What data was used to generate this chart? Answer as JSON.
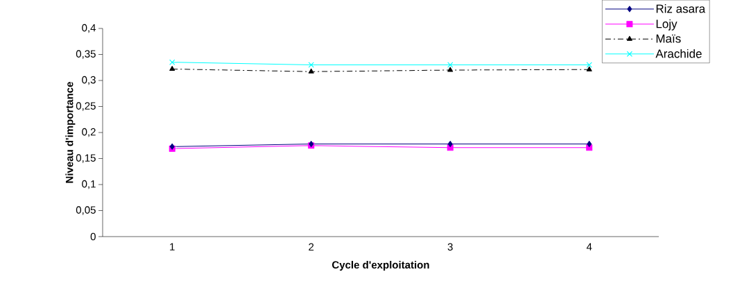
{
  "chart_data": {
    "type": "line",
    "xlabel": "Cycle d'exploitation",
    "ylabel": "Niveau d'importance",
    "categories": [
      "1",
      "2",
      "3",
      "4"
    ],
    "series": [
      {
        "name": "Riz asara",
        "color": "#000080",
        "marker": "diamond",
        "line_style": "solid",
        "values": [
          0.173,
          0.178,
          0.178,
          0.178
        ]
      },
      {
        "name": "Lojy",
        "color": "#ff00ff",
        "marker": "square",
        "line_style": "solid",
        "values": [
          0.169,
          0.175,
          0.171,
          0.171
        ]
      },
      {
        "name": "Maïs",
        "color": "#000000",
        "marker": "triangle",
        "line_style": "dashdot",
        "values": [
          0.322,
          0.317,
          0.32,
          0.321
        ]
      },
      {
        "name": "Arachide",
        "color": "#00ffff",
        "marker": "cross",
        "line_style": "solid",
        "values": [
          0.335,
          0.33,
          0.33,
          0.33
        ]
      }
    ],
    "ylim": [
      0,
      0.4
    ],
    "yticks": [
      0,
      {
        "value": 0.05,
        "label": "0,05"
      },
      {
        "value": 0.1,
        "label": "0,1"
      },
      {
        "value": 0.15,
        "label": "0,15"
      },
      {
        "value": 0.2,
        "label": "0,2"
      },
      {
        "value": 0.25,
        "label": "0,25"
      },
      {
        "value": 0.3,
        "label": "0,3"
      },
      {
        "value": 0.35,
        "label": "0,35"
      },
      {
        "value": 0.4,
        "label": "0,4"
      }
    ],
    "grid": false,
    "legend": "top right"
  }
}
